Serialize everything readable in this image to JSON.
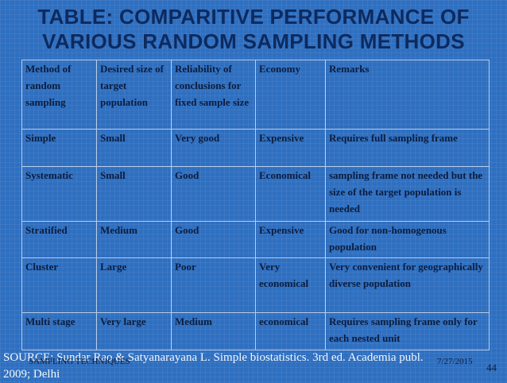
{
  "title": {
    "line1": "TABLE: COMPARITIVE PERFORMANCE OF",
    "line2": "VARIOUS RANDOM SAMPLING METHODS"
  },
  "table": {
    "headers": [
      "Method of random sampling",
      "Desired size of target population",
      "Reliability of conclusions for fixed sample size",
      "Economy",
      "Remarks"
    ],
    "rows": [
      [
        "Simple",
        "Small",
        "Very good",
        "Expensive",
        "Requires full sampling frame"
      ],
      [
        "Systematic",
        "Small",
        "Good",
        "Economical",
        "sampling frame not needed but the size of the target population is needed"
      ],
      [
        "Stratified",
        "Medium",
        "Good",
        "Expensive",
        "Good for non-homogenous population"
      ],
      [
        "Cluster",
        "Large",
        "Poor",
        "Very economical",
        "Very convenient for geographically diverse population"
      ],
      [
        "Multi stage",
        "Very large",
        "Medium",
        "economical",
        "Requires sampling frame only for each nested unit"
      ]
    ]
  },
  "footer": {
    "source_line1": "SOURCE: Sundar Rao & Satyanarayana L. Simple biostatistics.  3rd ed. Academia publ.",
    "source_line2": "2009; Delhi",
    "slide_label": "SAMPLING TECHNIQUES",
    "date": "7/27/2015",
    "page": "44"
  },
  "colors": {
    "background": "#2f6fc0",
    "title": "#0d2a5e",
    "table_text": "#0c1d3d",
    "grid": "#b8cde8"
  }
}
